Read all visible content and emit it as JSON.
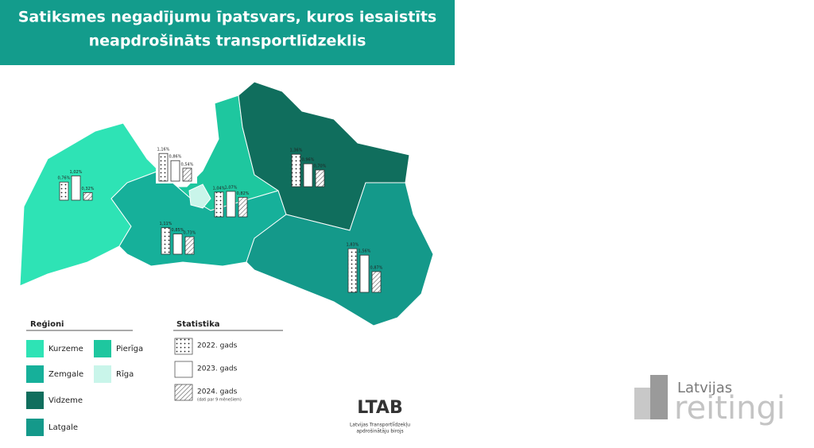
{
  "header": {
    "title_lines": [
      "Satiksmes negadījumu īpatsvars, kuros iesaistīts",
      "neapdrošināts transportlīdzeklis"
    ],
    "color": "#139c8c"
  },
  "map": {
    "regions": [
      {
        "name": "Kurzeme",
        "color": "#2ee3b5",
        "values": [
          0.76,
          1.02,
          0.32
        ],
        "value_labels": [
          "0,76%",
          "1,02%",
          "0,32%"
        ]
      },
      {
        "name": "Pierīga",
        "color": "#1ec79f",
        "values": [
          1.04,
          1.07,
          0.82
        ],
        "value_labels": [
          "1,04%",
          "1,07%",
          "0,82%"
        ]
      },
      {
        "name": "Zemgale",
        "color": "#16b09a",
        "values": [
          1.11,
          0.85,
          0.73
        ],
        "value_labels": [
          "1,11%",
          "0,85%",
          "0,73%"
        ]
      },
      {
        "name": "Rīga",
        "color": "#c9f5ea",
        "values": [
          1.16,
          0.86,
          0.54
        ],
        "value_labels": [
          "1,16%",
          "0,86%",
          "0,54%"
        ]
      },
      {
        "name": "Vidzeme",
        "color": "#106e5d",
        "values": [
          1.36,
          0.96,
          0.7
        ],
        "value_labels": [
          "1,36%",
          "0,96%",
          "0,70%"
        ]
      },
      {
        "name": "Latgale",
        "color": "#14998a",
        "values": [
          1.83,
          1.56,
          0.87
        ],
        "value_labels": [
          "1,83%",
          "1,56%",
          "0,87%"
        ]
      }
    ]
  },
  "legend": {
    "regions_title": "Reģioni",
    "stats_title": "Statistika",
    "stats": [
      {
        "label": "2022. gads",
        "pattern": "dots"
      },
      {
        "label": "2023. gads",
        "pattern": "plain"
      },
      {
        "label": "2024. gads",
        "pattern": "hatch",
        "note": "(dati par 9 mēnešiem)"
      }
    ]
  },
  "logos": {
    "ltab": "LTAB",
    "ltab_caption_lines": [
      "Latvijas Transportlīdzekļu",
      "apdrošinātāju birojs"
    ],
    "reitingi_top": "Latvijas",
    "reitingi_bottom": "reitingi"
  }
}
